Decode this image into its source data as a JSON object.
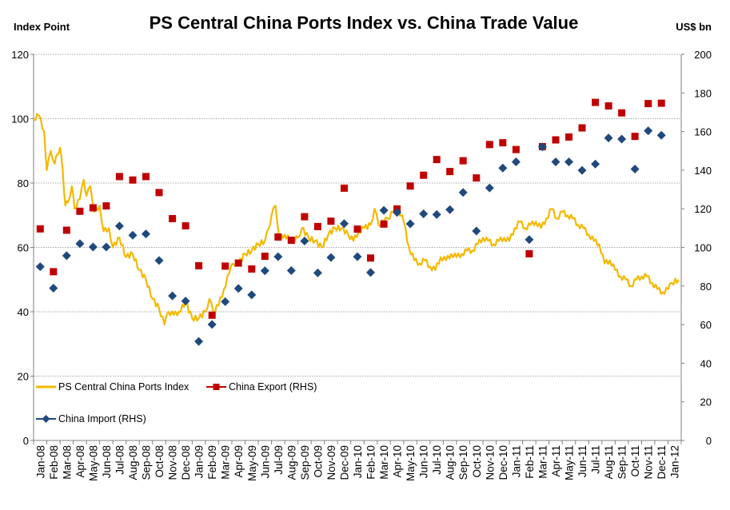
{
  "chart_data": {
    "type": "line",
    "title": "PS Central China Ports Index vs. China Trade Value",
    "left_axis": {
      "unit_label": "Index Point",
      "range": [
        0,
        120
      ],
      "ticks": [
        0,
        20,
        40,
        60,
        80,
        100,
        120
      ]
    },
    "right_axis": {
      "unit_label": "US$ bn",
      "range": [
        0,
        200
      ],
      "ticks": [
        0,
        20,
        40,
        60,
        80,
        100,
        120,
        140,
        160,
        180,
        200
      ]
    },
    "x_labels": [
      "Jan-08",
      "Feb-08",
      "Mar-08",
      "Apr-08",
      "May-08",
      "Jun-08",
      "Jul-08",
      "Aug-08",
      "Sep-08",
      "Oct-08",
      "Nov-08",
      "Dec-08",
      "Jan-09",
      "Feb-09",
      "Mar-09",
      "Apr-09",
      "May-09",
      "Jun-09",
      "Jul-09",
      "Aug-09",
      "Sep-09",
      "Oct-09",
      "Nov-09",
      "Dec-09",
      "Jan-10",
      "Feb-10",
      "Mar-10",
      "Apr-10",
      "May-10",
      "Jun-10",
      "Jul-10",
      "Aug-10",
      "Sep-10",
      "Oct-10",
      "Nov-10",
      "Dec-10",
      "Jan-11",
      "Feb-11",
      "Mar-11",
      "Apr-11",
      "May-11",
      "Jun-11",
      "Jul-11",
      "Aug-11",
      "Sep-11",
      "Oct-11",
      "Nov-11",
      "Dec-11",
      "Jan-12"
    ],
    "grid": true,
    "legend_position": "bottom-left",
    "series": [
      {
        "name": "PS Central China Ports Index",
        "axis": "left",
        "style": "line",
        "color": "#f5b800",
        "anchors": [
          [
            0,
            100
          ],
          [
            0.4,
            101
          ],
          [
            0.8,
            96
          ],
          [
            1.0,
            84
          ],
          [
            1.3,
            90
          ],
          [
            1.6,
            86
          ],
          [
            1.8,
            89
          ],
          [
            2.0,
            91
          ],
          [
            2.2,
            84
          ],
          [
            2.4,
            73
          ],
          [
            2.6,
            74
          ],
          [
            2.9,
            79
          ],
          [
            3.1,
            72
          ],
          [
            3.5,
            75
          ],
          [
            3.8,
            81
          ],
          [
            4.0,
            76
          ],
          [
            4.3,
            79
          ],
          [
            4.6,
            71
          ],
          [
            5.0,
            73
          ],
          [
            5.3,
            65
          ],
          [
            5.7,
            66
          ],
          [
            6.0,
            60
          ],
          [
            6.5,
            63
          ],
          [
            7.0,
            57
          ],
          [
            7.5,
            58
          ],
          [
            8.0,
            53
          ],
          [
            8.5,
            50
          ],
          [
            9.0,
            44
          ],
          [
            9.5,
            41
          ],
          [
            9.9,
            36
          ],
          [
            10.2,
            40
          ],
          [
            10.6,
            39
          ],
          [
            11.0,
            40
          ],
          [
            11.5,
            43
          ],
          [
            12.0,
            38
          ],
          [
            12.5,
            38
          ],
          [
            13.0,
            40
          ],
          [
            13.3,
            44
          ],
          [
            13.6,
            40
          ],
          [
            14.0,
            42
          ],
          [
            14.4,
            47
          ],
          [
            14.8,
            52
          ],
          [
            15.1,
            55
          ],
          [
            15.5,
            55
          ],
          [
            16.0,
            58
          ],
          [
            16.5,
            59
          ],
          [
            17.0,
            61
          ],
          [
            17.5,
            62
          ],
          [
            17.8,
            66
          ],
          [
            18.0,
            70
          ],
          [
            18.3,
            73
          ],
          [
            18.6,
            63
          ],
          [
            19.0,
            64
          ],
          [
            19.5,
            62
          ],
          [
            20.0,
            63
          ],
          [
            20.3,
            66
          ],
          [
            20.8,
            63
          ],
          [
            21.3,
            62
          ],
          [
            21.8,
            60
          ],
          [
            22.3,
            64
          ],
          [
            22.8,
            66
          ],
          [
            23.3,
            66
          ],
          [
            23.8,
            64
          ],
          [
            24.2,
            62
          ],
          [
            24.6,
            65
          ],
          [
            25.0,
            66
          ],
          [
            25.5,
            67
          ],
          [
            25.8,
            72
          ],
          [
            26.1,
            67
          ],
          [
            26.5,
            68
          ],
          [
            26.8,
            69
          ],
          [
            27.2,
            71
          ],
          [
            27.6,
            72
          ],
          [
            28.0,
            68
          ],
          [
            28.4,
            60
          ],
          [
            28.8,
            56
          ],
          [
            29.2,
            55
          ],
          [
            29.6,
            56
          ],
          [
            30.0,
            54
          ],
          [
            30.4,
            53
          ],
          [
            30.8,
            57
          ],
          [
            31.2,
            56
          ],
          [
            31.6,
            58
          ],
          [
            32.0,
            57
          ],
          [
            32.4,
            58
          ],
          [
            32.8,
            59
          ],
          [
            33.2,
            59
          ],
          [
            33.6,
            61
          ],
          [
            34.0,
            63
          ],
          [
            34.4,
            62
          ],
          [
            34.8,
            61
          ],
          [
            35.2,
            62
          ],
          [
            35.6,
            63
          ],
          [
            36.0,
            62
          ],
          [
            36.4,
            66
          ],
          [
            36.8,
            68
          ],
          [
            37.2,
            66
          ],
          [
            37.6,
            67
          ],
          [
            38.0,
            68
          ],
          [
            38.4,
            66
          ],
          [
            38.8,
            69
          ],
          [
            39.2,
            72
          ],
          [
            39.6,
            69
          ],
          [
            40.0,
            71
          ],
          [
            40.4,
            70
          ],
          [
            40.8,
            69
          ],
          [
            41.2,
            67
          ],
          [
            41.6,
            66
          ],
          [
            42.0,
            64
          ],
          [
            42.4,
            62
          ],
          [
            42.8,
            61
          ],
          [
            43.2,
            55
          ],
          [
            43.6,
            56
          ],
          [
            44.0,
            53
          ],
          [
            44.4,
            51
          ],
          [
            44.8,
            50
          ],
          [
            45.2,
            48
          ],
          [
            45.6,
            50
          ],
          [
            46.0,
            51
          ],
          [
            46.4,
            51
          ],
          [
            46.8,
            49
          ],
          [
            47.2,
            47
          ],
          [
            47.6,
            46
          ],
          [
            48.0,
            47
          ],
          [
            48.3,
            49
          ],
          [
            48.8,
            50
          ]
        ]
      },
      {
        "name": "China Export (RHS)",
        "axis": "right",
        "style": "markers",
        "marker": "square",
        "color": "#c00000",
        "values": [
          109.6,
          87.4,
          108.9,
          118.7,
          120.5,
          121.5,
          136.7,
          134.9,
          136.7,
          128.4,
          114.9,
          111.2,
          90.5,
          64.9,
          90.3,
          91.9,
          88.8,
          95.4,
          105.4,
          103.7,
          115.9,
          110.8,
          113.6,
          130.7,
          109.5,
          94.5,
          112.1,
          119.9,
          131.8,
          137.4,
          145.5,
          139.3,
          144.9,
          136.0,
          153.3,
          154.2,
          150.7,
          96.7,
          152.2,
          155.7,
          157.2,
          161.9,
          175.1,
          173.3,
          169.7,
          157.5,
          174.5,
          174.7
        ]
      },
      {
        "name": "China Import (RHS)",
        "axis": "right",
        "style": "markers",
        "marker": "diamond",
        "color": "#1f497d",
        "values": [
          90.0,
          78.9,
          95.7,
          101.9,
          100.2,
          100.2,
          111.1,
          106.3,
          107.0,
          93.2,
          74.9,
          72.2,
          51.3,
          60.1,
          71.9,
          78.7,
          75.4,
          87.9,
          95.2,
          88.0,
          103.3,
          86.8,
          94.8,
          112.3,
          95.2,
          87.0,
          119.2,
          118.1,
          112.2,
          117.4,
          117.0,
          119.6,
          128.5,
          108.5,
          130.8,
          141.1,
          144.3,
          104.0,
          152.1,
          144.3,
          144.3,
          139.9,
          143.2,
          156.7,
          156.1,
          140.6,
          160.4,
          158.1
        ]
      }
    ]
  }
}
